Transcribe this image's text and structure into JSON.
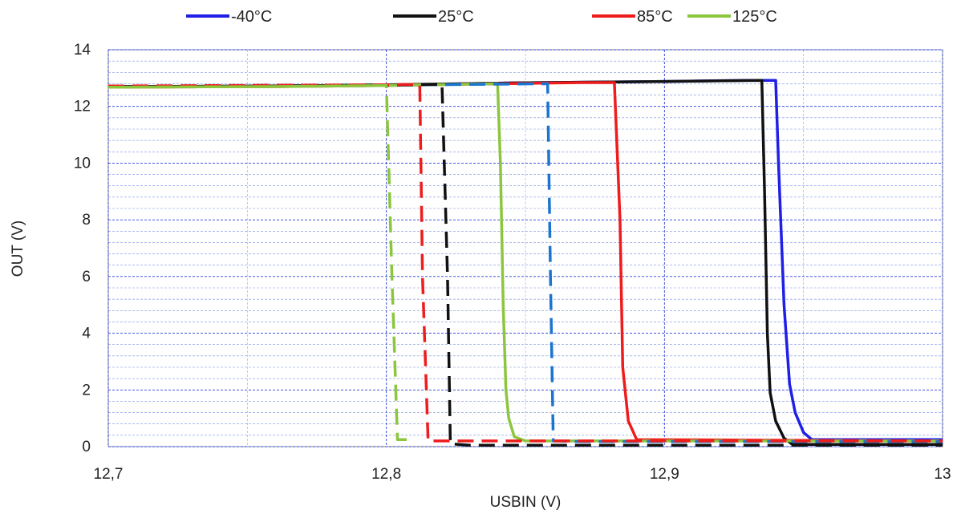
{
  "chart_data": {
    "type": "line",
    "xlabel": "USBIN (V)",
    "ylabel": "OUT (V)",
    "xlim": [
      12.7,
      13.0
    ],
    "ylim": [
      0,
      14
    ],
    "x_ticks": [
      12.7,
      12.8,
      12.9,
      13.0
    ],
    "x_tick_labels": [
      "12,7",
      "12,8",
      "12,9",
      "13"
    ],
    "y_ticks": [
      0,
      2,
      4,
      6,
      8,
      10,
      12,
      14
    ],
    "y_tick_labels": [
      "0",
      "2",
      "4",
      "6",
      "8",
      "10",
      "12",
      "14"
    ],
    "grid": "major and minor, dashed blue",
    "legend_position": "top",
    "series": [
      {
        "name": "-40°C",
        "color": "#1f1fe6",
        "style": "solid",
        "points": [
          [
            12.7,
            12.7
          ],
          [
            12.76,
            12.72
          ],
          [
            12.8,
            12.75
          ],
          [
            12.84,
            12.82
          ],
          [
            12.88,
            12.86
          ],
          [
            12.9,
            12.88
          ],
          [
            12.93,
            12.92
          ],
          [
            12.94,
            12.92
          ],
          [
            12.941,
            10.0
          ],
          [
            12.943,
            5.0
          ],
          [
            12.945,
            2.2
          ],
          [
            12.947,
            1.2
          ],
          [
            12.95,
            0.5
          ],
          [
            12.953,
            0.25
          ],
          [
            13.0,
            0.25
          ]
        ]
      },
      {
        "name": "25°C",
        "color": "#111111",
        "style": "solid",
        "points": [
          [
            12.7,
            12.7
          ],
          [
            12.76,
            12.72
          ],
          [
            12.8,
            12.76
          ],
          [
            12.84,
            12.82
          ],
          [
            12.88,
            12.86
          ],
          [
            12.9,
            12.88
          ],
          [
            12.935,
            12.92
          ],
          [
            12.936,
            9.0
          ],
          [
            12.937,
            4.0
          ],
          [
            12.938,
            1.9
          ],
          [
            12.94,
            0.9
          ],
          [
            12.943,
            0.3
          ],
          [
            12.946,
            0.08
          ],
          [
            13.0,
            0.08
          ]
        ]
      },
      {
        "name": "85°C",
        "color": "#ee1c1c",
        "style": "solid",
        "points": [
          [
            12.7,
            12.68
          ],
          [
            12.76,
            12.7
          ],
          [
            12.8,
            12.74
          ],
          [
            12.84,
            12.8
          ],
          [
            12.87,
            12.84
          ],
          [
            12.882,
            12.84
          ],
          [
            12.884,
            8.0
          ],
          [
            12.885,
            2.8
          ],
          [
            12.887,
            0.9
          ],
          [
            12.89,
            0.25
          ],
          [
            13.0,
            0.2
          ]
        ]
      },
      {
        "name": "125°C",
        "color": "#8cc63f",
        "style": "solid",
        "points": [
          [
            12.7,
            12.68
          ],
          [
            12.76,
            12.7
          ],
          [
            12.8,
            12.74
          ],
          [
            12.84,
            12.8
          ],
          [
            12.841,
            10.0
          ],
          [
            12.842,
            5.0
          ],
          [
            12.843,
            2.0
          ],
          [
            12.844,
            1.0
          ],
          [
            12.846,
            0.35
          ],
          [
            12.85,
            0.2
          ],
          [
            13.0,
            0.2
          ]
        ]
      },
      {
        "name": "",
        "color": "#1b75d0",
        "style": "dashed",
        "points": [
          [
            12.7,
            12.7
          ],
          [
            12.8,
            12.75
          ],
          [
            12.858,
            12.8
          ],
          [
            12.859,
            6.0
          ],
          [
            12.86,
            0.2
          ],
          [
            12.87,
            0.18
          ],
          [
            13.0,
            0.18
          ]
        ]
      },
      {
        "name": "",
        "color": "#111111",
        "style": "dashed",
        "points": [
          [
            12.7,
            12.7
          ],
          [
            12.8,
            12.75
          ],
          [
            12.82,
            12.78
          ],
          [
            12.822,
            6.0
          ],
          [
            12.823,
            0.1
          ],
          [
            12.83,
            0.05
          ],
          [
            13.0,
            0.05
          ]
        ]
      },
      {
        "name": "",
        "color": "#ee1c1c",
        "style": "dashed",
        "points": [
          [
            12.7,
            12.72
          ],
          [
            12.8,
            12.76
          ],
          [
            12.812,
            12.78
          ],
          [
            12.813,
            6.0
          ],
          [
            12.815,
            0.2
          ],
          [
            12.825,
            0.2
          ],
          [
            13.0,
            0.2
          ]
        ]
      },
      {
        "name": "",
        "color": "#8cc63f",
        "style": "dashed",
        "points": [
          [
            12.7,
            12.68
          ],
          [
            12.76,
            12.7
          ],
          [
            12.8,
            12.74
          ],
          [
            12.802,
            6.0
          ],
          [
            12.804,
            0.25
          ],
          [
            12.81,
            0.25
          ]
        ]
      }
    ]
  }
}
